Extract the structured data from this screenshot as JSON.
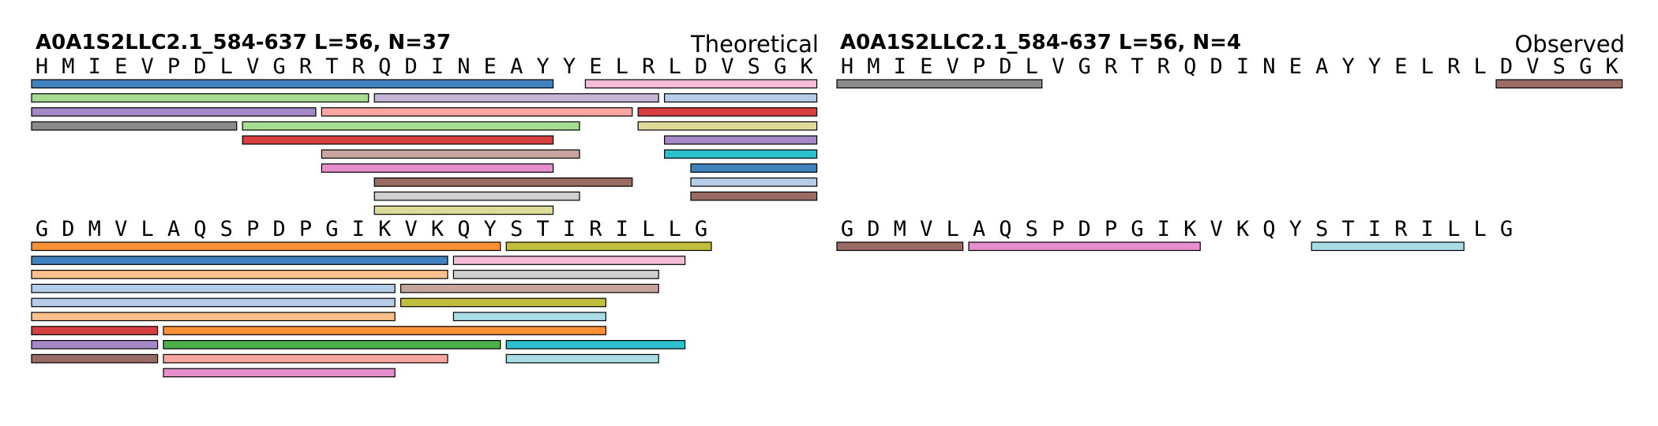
{
  "figure": {
    "theoretical": {
      "title": "A0A1S2LLC2.1_584-637  L=56, N=37",
      "label": "Theoretical",
      "lines": [
        {
          "sequence": "HMIEVPDLVGRTRQDINEAYYELRLDVSGK",
          "peptides": [
            {
              "start": 0,
              "end": 19,
              "row": 0,
              "color": "#3f82bd"
            },
            {
              "start": 21,
              "end": 29,
              "row": 0,
              "color": "#f4bcd6"
            },
            {
              "start": 0,
              "end": 12,
              "row": 1,
              "color": "#a6dc92"
            },
            {
              "start": 13,
              "end": 23,
              "row": 1,
              "color": "#c7b5d9"
            },
            {
              "start": 24,
              "end": 29,
              "row": 1,
              "color": "#b5cde8"
            },
            {
              "start": 0,
              "end": 10,
              "row": 2,
              "color": "#a487c5"
            },
            {
              "start": 11,
              "end": 22,
              "row": 2,
              "color": "#f9a6a0"
            },
            {
              "start": 23,
              "end": 29,
              "row": 2,
              "color": "#d63f3f"
            },
            {
              "start": 0,
              "end": 7,
              "row": 3,
              "color": "#8a8a8a"
            },
            {
              "start": 8,
              "end": 20,
              "row": 3,
              "color": "#a6dc92"
            },
            {
              "start": 23,
              "end": 29,
              "row": 3,
              "color": "#dedb98"
            },
            {
              "start": 8,
              "end": 19,
              "row": 4,
              "color": "#d63f3f"
            },
            {
              "start": 24,
              "end": 29,
              "row": 4,
              "color": "#a487c5"
            },
            {
              "start": 11,
              "end": 20,
              "row": 5,
              "color": "#c7a59e"
            },
            {
              "start": 24,
              "end": 29,
              "row": 5,
              "color": "#2cbfce"
            },
            {
              "start": 11,
              "end": 19,
              "row": 6,
              "color": "#e68fcc"
            },
            {
              "start": 25,
              "end": 29,
              "row": 6,
              "color": "#3f82bd"
            },
            {
              "start": 13,
              "end": 22,
              "row": 7,
              "color": "#9a6a64"
            },
            {
              "start": 25,
              "end": 29,
              "row": 7,
              "color": "#b5cde8"
            },
            {
              "start": 13,
              "end": 20,
              "row": 8,
              "color": "#cfcfcf"
            },
            {
              "start": 25,
              "end": 29,
              "row": 8,
              "color": "#9a6a64"
            },
            {
              "start": 13,
              "end": 19,
              "row": 9,
              "color": "#dedb98"
            }
          ]
        },
        {
          "sequence": "GDMVLAQSPDPGIKVKQYSTIRILLG",
          "peptides": [
            {
              "start": 0,
              "end": 17,
              "row": 0,
              "color": "#fb9036"
            },
            {
              "start": 18,
              "end": 25,
              "row": 0,
              "color": "#c0bf3d"
            },
            {
              "start": 0,
              "end": 15,
              "row": 1,
              "color": "#3f82bd"
            },
            {
              "start": 16,
              "end": 24,
              "row": 1,
              "color": "#f4bcd6"
            },
            {
              "start": 0,
              "end": 15,
              "row": 2,
              "color": "#fbc08c"
            },
            {
              "start": 16,
              "end": 23,
              "row": 2,
              "color": "#cfcfcf"
            },
            {
              "start": 0,
              "end": 13,
              "row": 3,
              "color": "#b5cde8"
            },
            {
              "start": 14,
              "end": 23,
              "row": 3,
              "color": "#c7a59e"
            },
            {
              "start": 0,
              "end": 13,
              "row": 4,
              "color": "#b5cde8"
            },
            {
              "start": 14,
              "end": 21,
              "row": 4,
              "color": "#c0bf3d"
            },
            {
              "start": 0,
              "end": 13,
              "row": 5,
              "color": "#fbc08c"
            },
            {
              "start": 16,
              "end": 21,
              "row": 5,
              "color": "#a8dde6"
            },
            {
              "start": 0,
              "end": 4,
              "row": 6,
              "color": "#d63f3f"
            },
            {
              "start": 5,
              "end": 21,
              "row": 6,
              "color": "#fb9036"
            },
            {
              "start": 0,
              "end": 4,
              "row": 7,
              "color": "#a487c5"
            },
            {
              "start": 5,
              "end": 17,
              "row": 7,
              "color": "#4caf4c"
            },
            {
              "start": 18,
              "end": 24,
              "row": 7,
              "color": "#2cbfce"
            },
            {
              "start": 0,
              "end": 4,
              "row": 8,
              "color": "#9a6a64"
            },
            {
              "start": 5,
              "end": 15,
              "row": 8,
              "color": "#f9a6a0"
            },
            {
              "start": 18,
              "end": 23,
              "row": 8,
              "color": "#a8dde6"
            },
            {
              "start": 5,
              "end": 13,
              "row": 9,
              "color": "#e68fcc"
            }
          ]
        }
      ]
    },
    "observed": {
      "title": "A0A1S2LLC2.1_584-637  L=56, N=4",
      "label": "Observed",
      "lines": [
        {
          "sequence": "HMIEVPDLVGRTRQDINEAYYELRLDVSGK",
          "peptides": [
            {
              "start": 0,
              "end": 7,
              "row": 0,
              "color": "#8a8a8a"
            },
            {
              "start": 25,
              "end": 29,
              "row": 0,
              "color": "#9a6a64"
            }
          ]
        },
        {
          "sequence": "GDMVLAQSPDPGIKVKQYSTIRILLG",
          "peptides": [
            {
              "start": 0,
              "end": 4,
              "row": 0,
              "color": "#9a6a64"
            },
            {
              "start": 5,
              "end": 13,
              "row": 0,
              "color": "#e68fcc"
            },
            {
              "start": 18,
              "end": 23,
              "row": 0,
              "color": "#a8dde6"
            }
          ]
        }
      ]
    }
  }
}
